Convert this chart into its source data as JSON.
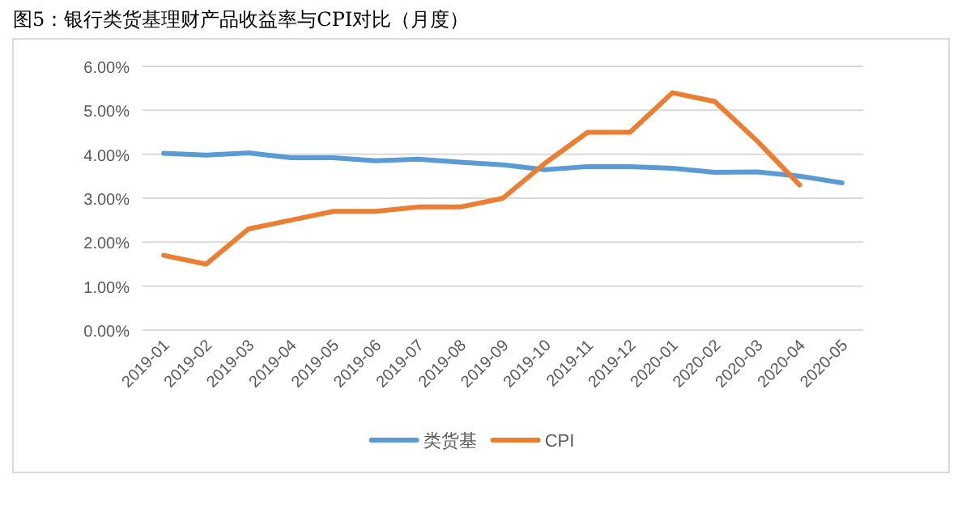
{
  "chart_data": {
    "type": "line",
    "title": "图5：银行类货基理财产品收益率与CPI对比（月度）",
    "categories": [
      "2019-01",
      "2019-02",
      "2019-03",
      "2019-04",
      "2019-05",
      "2019-06",
      "2019-07",
      "2019-08",
      "2019-09",
      "2019-10",
      "2019-11",
      "2019-12",
      "2020-01",
      "2020-02",
      "2020-03",
      "2020-04",
      "2020-05"
    ],
    "series": [
      {
        "name": "类货基",
        "color": "#5b9bd5",
        "values": [
          4.02,
          3.98,
          4.03,
          3.92,
          3.92,
          3.85,
          3.89,
          3.82,
          3.76,
          3.65,
          3.72,
          3.72,
          3.68,
          3.59,
          3.6,
          3.5,
          3.35
        ]
      },
      {
        "name": "CPI",
        "color": "#ed7d31",
        "values": [
          1.7,
          1.5,
          2.3,
          2.5,
          2.7,
          2.7,
          2.8,
          2.8,
          3.0,
          3.8,
          4.5,
          4.5,
          5.4,
          5.2,
          4.3,
          3.3,
          null
        ]
      }
    ],
    "ylim": [
      0,
      6
    ],
    "yticks": [
      {
        "value": 0,
        "label": "0.00%"
      },
      {
        "value": 1,
        "label": "1.00%"
      },
      {
        "value": 2,
        "label": "2.00%"
      },
      {
        "value": 3,
        "label": "3.00%"
      },
      {
        "value": 4,
        "label": "4.00%"
      },
      {
        "value": 5,
        "label": "5.00%"
      },
      {
        "value": 6,
        "label": "6.00%"
      }
    ],
    "grid": "y",
    "legend": "bottom",
    "marker": "none",
    "line_style": "solid"
  }
}
